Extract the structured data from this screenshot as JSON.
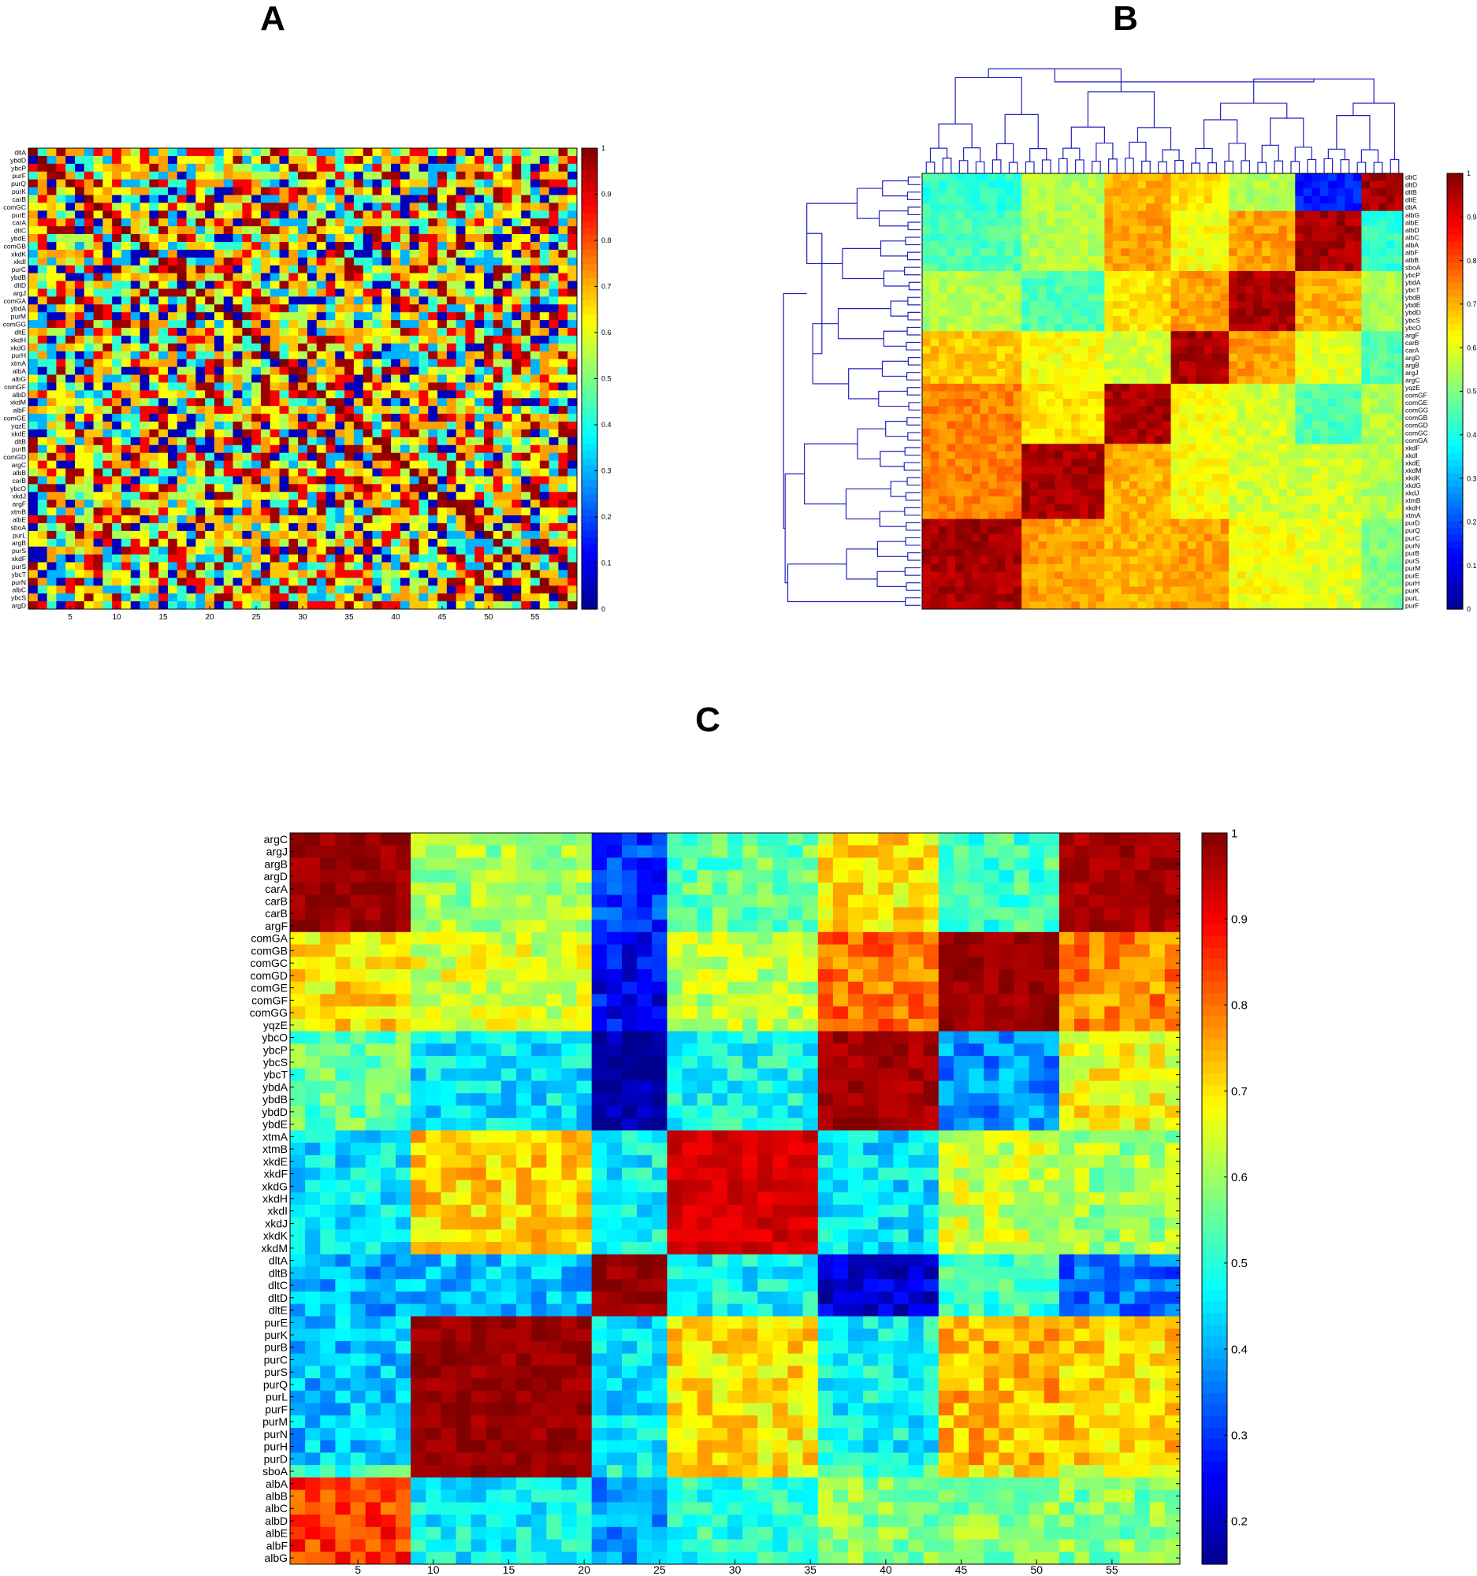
{
  "panels": {
    "a": {
      "label": "A"
    },
    "b": {
      "label": "B"
    },
    "c": {
      "label": "C"
    }
  },
  "colormap": [
    "#00008F",
    "#0000FF",
    "#0080FF",
    "#00FFFF",
    "#80FF80",
    "#FFFF00",
    "#FF8000",
    "#FF0000",
    "#800000"
  ],
  "chart_data": [
    {
      "panel": "A",
      "type": "heatmap",
      "title": "",
      "rows": [
        "dltA",
        "ybdD",
        "ybcP",
        "purF",
        "purQ",
        "purK",
        "carB",
        "comGC",
        "purE",
        "carA",
        "dltC",
        "ybdE",
        "comGB",
        "xkdK",
        "xkdI",
        "purC",
        "ybdB",
        "dltD",
        "argJ",
        "comGA",
        "ybdA",
        "purM",
        "comGG",
        "dltE",
        "xkdH",
        "xkdG",
        "purH",
        "xtmA",
        "albA",
        "albG",
        "comGF",
        "albD",
        "xkdM",
        "albF",
        "comGE",
        "yqzE",
        "xkdE",
        "dltB",
        "purB",
        "comGD",
        "argC",
        "albB",
        "carB",
        "ybcO",
        "xkdJ",
        "argF",
        "xtmB",
        "albE",
        "sboA",
        "purL",
        "argB",
        "purS",
        "xkdF",
        "purS",
        "ybcT",
        "purN",
        "albC",
        "ybcS",
        "argD"
      ],
      "x_ticks": [
        "5",
        "10",
        "15",
        "20",
        "25",
        "30",
        "35",
        "40",
        "45",
        "50",
        "55"
      ],
      "n_cols": 59,
      "colorbar": {
        "min": 0,
        "max": 1,
        "ticks": [
          "0",
          "0.1",
          "0.2",
          "0.3",
          "0.4",
          "0.5",
          "0.6",
          "0.7",
          "0.8",
          "0.9",
          "1"
        ]
      },
      "pattern": "unordered (random gene order) — no visible block structure"
    },
    {
      "panel": "B",
      "type": "heatmap",
      "title": "",
      "rows": [
        "dltC",
        "dltD",
        "dltB",
        "dltE",
        "dltA",
        "albG",
        "albE",
        "albD",
        "albC",
        "albA",
        "albF",
        "albB",
        "sboA",
        "ybcP",
        "ybdA",
        "ybcT",
        "ybdB",
        "ybdE",
        "ybdD",
        "ybcS",
        "ybcO",
        "argF",
        "carB",
        "carA",
        "argD",
        "argB",
        "argJ",
        "argC",
        "yqzE",
        "comGF",
        "comGE",
        "comGG",
        "comGB",
        "comGD",
        "comGC",
        "comGA",
        "xkdF",
        "xkdI",
        "xkdE",
        "xkdM",
        "xkdK",
        "xkdG",
        "xkdJ",
        "xtmB",
        "xkdH",
        "xtmA",
        "purD",
        "purQ",
        "purC",
        "purN",
        "purB",
        "purS",
        "purM",
        "purE",
        "purH",
        "purK",
        "purL",
        "purF"
      ],
      "colorbar": {
        "min": 0,
        "max": 1,
        "ticks": [
          "0",
          "0.1",
          "0.2",
          "0.3",
          "0.4",
          "0.5",
          "0.6",
          "0.7",
          "0.8",
          "0.9",
          "1"
        ]
      },
      "dendrogram": true,
      "blocks_top_to_bottom": [
        "dlt (5)",
        "alb+sbo (8)",
        "ybc/ybd (8)",
        "arg/car (7)",
        "com+yqzE (8)",
        "xkd/xtm (10)",
        "pur (12)"
      ]
    },
    {
      "panel": "C",
      "type": "heatmap",
      "title": "",
      "rows": [
        "argC",
        "argJ",
        "argB",
        "argD",
        "carA",
        "carB",
        "carB",
        "argF",
        "comGA",
        "comGB",
        "comGC",
        "comGD",
        "comGE",
        "comGF",
        "comGG",
        "yqzE",
        "ybcO",
        "ybcP",
        "ybcS",
        "ybcT",
        "ybdA",
        "ybdB",
        "ybdD",
        "ybdE",
        "xtmA",
        "xtmB",
        "xkdE",
        "xkdF",
        "xkdG",
        "xkdH",
        "xkdI",
        "xkdJ",
        "xkdK",
        "xkdM",
        "dltA",
        "dltB",
        "dltC",
        "dltD",
        "dltE",
        "purE",
        "purK",
        "purB",
        "purC",
        "purS",
        "purQ",
        "purL",
        "purF",
        "purM",
        "purN",
        "purH",
        "purD",
        "sboA",
        "albA",
        "albB",
        "albC",
        "albD",
        "albE",
        "albF",
        "albG"
      ],
      "x_ticks": [
        5,
        10,
        15,
        20,
        25,
        30,
        35,
        40,
        45,
        50,
        55
      ],
      "n_cols": 59,
      "colorbar": {
        "min": 0.15,
        "max": 1.0,
        "ticks": [
          "0.2",
          "0.3",
          "0.4",
          "0.5",
          "0.6",
          "0.7",
          "0.8",
          "0.9",
          "1"
        ],
        "tick_values": [
          0.2,
          0.3,
          0.4,
          0.5,
          0.6,
          0.7,
          0.8,
          0.9,
          1.0
        ]
      },
      "groups": [
        {
          "name": "arg/car",
          "size": 8
        },
        {
          "name": "com/yqz",
          "size": 8
        },
        {
          "name": "ybc/ybd",
          "size": 8
        },
        {
          "name": "xtm/xkd",
          "size": 10
        },
        {
          "name": "dlt",
          "size": 5
        },
        {
          "name": "pur",
          "size": 12
        },
        {
          "name": "sbo",
          "size": 1
        },
        {
          "name": "alb",
          "size": 7
        }
      ],
      "column_group_order": [
        "alb",
        "pur",
        "dlt",
        "xtm/xkd",
        "ybc/ybd",
        "com/yqz",
        "arg/car"
      ],
      "column_group_widths": [
        8,
        12,
        5,
        10,
        8,
        8,
        8
      ],
      "group_similarity": [
        [
          0.98,
          0.6,
          0.3,
          0.55,
          0.7,
          0.52,
          0.97
        ],
        [
          0.7,
          0.65,
          0.25,
          0.62,
          0.8,
          0.98,
          0.78
        ],
        [
          0.55,
          0.45,
          0.15,
          0.48,
          0.97,
          0.38,
          0.68
        ],
        [
          0.45,
          0.72,
          0.47,
          0.93,
          0.45,
          0.64,
          0.6
        ],
        [
          0.4,
          0.42,
          0.98,
          0.47,
          0.22,
          0.52,
          0.35
        ],
        [
          0.42,
          0.98,
          0.45,
          0.7,
          0.47,
          0.74,
          0.72
        ],
        [
          0.52,
          0.98,
          0.48,
          0.7,
          0.52,
          0.7,
          0.64
        ],
        [
          0.85,
          0.47,
          0.38,
          0.5,
          0.58,
          0.58,
          0.58
        ]
      ]
    }
  ]
}
